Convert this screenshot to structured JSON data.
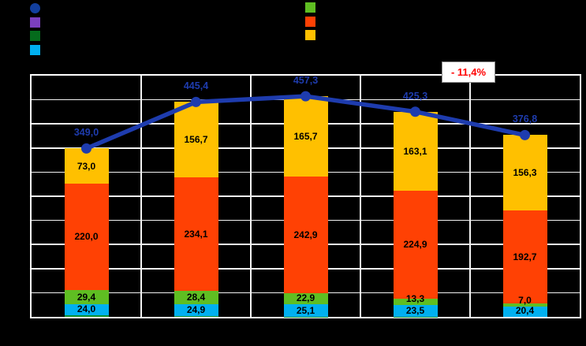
{
  "window": {
    "background": "#000000"
  },
  "annotation": {
    "text": "- 11,4%",
    "text_color": "#FF0000",
    "box_bg": "#FFFFFF",
    "box_border": "#8A8A8A"
  },
  "legend": {
    "labels_visible": false,
    "left": [
      {
        "shape": "circle",
        "color": "#123F9E",
        "series": "total-line-marker"
      },
      {
        "shape": "square",
        "color": "#7B3FBF",
        "series": "purple-segment"
      },
      {
        "shape": "square",
        "color": "#056B1C",
        "series": "dark-green-segment"
      },
      {
        "shape": "square",
        "color": "#00B0F0",
        "series": "cyan-segment"
      }
    ],
    "right": [
      {
        "shape": "square",
        "color": "#5FBE22",
        "series": "light-green-segment"
      },
      {
        "shape": "square",
        "color": "#FF4104",
        "series": "orange-red-segment"
      },
      {
        "shape": "square",
        "color": "#FFC000",
        "series": "amber-segment"
      }
    ]
  },
  "chart_data": {
    "type": "bar",
    "subtype": "stacked-bars-with-total-line",
    "categories": [
      "",
      "",
      "",
      "",
      ""
    ],
    "series": [
      {
        "name": "cyan-segment",
        "color": "#00B0F0",
        "values": [
          24.0,
          24.9,
          25.1,
          23.5,
          20.4
        ]
      },
      {
        "name": "light-green-segment",
        "color": "#5FBE22",
        "values": [
          29.4,
          28.4,
          22.9,
          13.3,
          7.0
        ]
      },
      {
        "name": "orange-red-segment",
        "color": "#FF4104",
        "values": [
          220.0,
          234.1,
          242.9,
          224.9,
          192.7
        ]
      },
      {
        "name": "amber-segment",
        "color": "#FFC000",
        "values": [
          73.0,
          156.7,
          165.7,
          163.1,
          156.3
        ]
      }
    ],
    "base_sliver": {
      "name": "dark-green-base-sliver",
      "color": "#0E8F2F",
      "note": "total minus labeled segments, unlabeled"
    },
    "line_series": {
      "name": "total-line",
      "color": "#1E3CAE",
      "values": [
        349.0,
        445.4,
        457.3,
        425.3,
        376.8
      ]
    },
    "value_labels_decimal_separator": ",",
    "ylim": [
      0,
      500
    ],
    "grid_step": 50,
    "gridlines": true,
    "grid_color": "#F2F2F2",
    "plot_border_color": "#FFFFFF",
    "annotation": "- 11,4%",
    "axis_tick_labels_visible": false,
    "legend_position": "top"
  }
}
